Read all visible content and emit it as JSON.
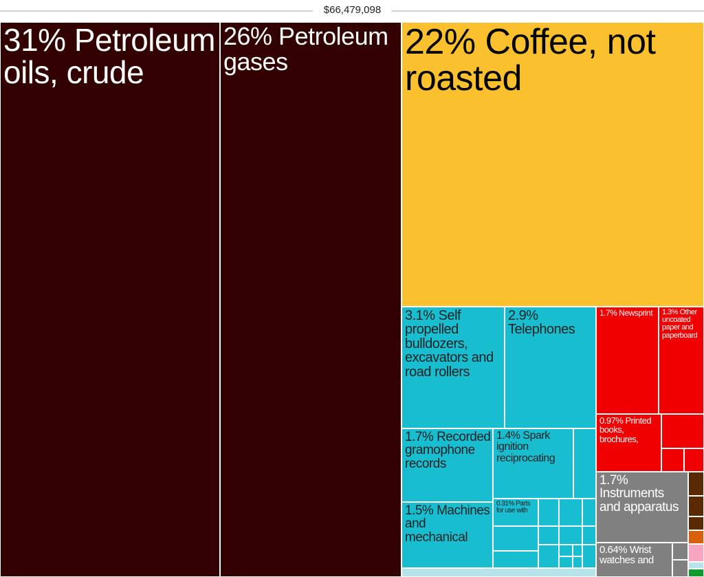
{
  "chart_data": {
    "type": "treemap",
    "total": "$66,479,098",
    "colors": {
      "dark": "#330000",
      "coffee": "#fbc02d",
      "machinery": "#19bdd0",
      "paper": "#f00000",
      "instruments": "#808080",
      "misc_brown": "#5a2a05",
      "misc_orange": "#d8600a",
      "misc_pink": "#f7a6c2",
      "misc_green": "#0d9b2e",
      "misc_light": "#b7e3ea"
    },
    "items": [
      {
        "share_pct": 31,
        "label": "31% Petroleum oils, crude",
        "color_key": "dark",
        "label_color": "#ffffff"
      },
      {
        "share_pct": 26,
        "label": "26% Petroleum gases",
        "color_key": "dark",
        "label_color": "#ffffff"
      },
      {
        "share_pct": 22,
        "label": "22% Coffee, not roasted",
        "color_key": "coffee",
        "label_color": "#000000"
      },
      {
        "share_pct": 3.1,
        "label": "3.1% Self propelled bulldozers, excavators and road rollers",
        "color_key": "machinery",
        "label_color": "#222222"
      },
      {
        "share_pct": 2.9,
        "label": "2.9% Telephones",
        "color_key": "machinery",
        "label_color": "#222222"
      },
      {
        "share_pct": 1.7,
        "label": "1.7% Recorded gramophone records",
        "color_key": "machinery",
        "label_color": "#222222"
      },
      {
        "share_pct": 1.4,
        "label": "1.4% Spark ignition reciprocating",
        "color_key": "machinery",
        "label_color": "#222222"
      },
      {
        "share_pct": 1.5,
        "label": "1.5% Machines and mechanical",
        "color_key": "machinery",
        "label_color": "#222222"
      },
      {
        "share_pct": 0.31,
        "label": "0.31% Parts for use with",
        "color_key": "machinery",
        "label_color": "#222222"
      },
      {
        "share_pct": 1.7,
        "label": "1.7% Newsprint",
        "color_key": "paper",
        "label_color": "#ffffff"
      },
      {
        "share_pct": 1.3,
        "label": "1.3% Other uncoated paper and paperboard",
        "color_key": "paper",
        "label_color": "#ffffff"
      },
      {
        "share_pct": 0.97,
        "label": "0.97% Printed books, brochures,",
        "color_key": "paper",
        "label_color": "#ffffff"
      },
      {
        "share_pct": 1.7,
        "label": "1.7% Instruments and apparatus",
        "color_key": "instruments",
        "label_color": "#ffffff"
      },
      {
        "share_pct": 0.64,
        "label": "0.64% Wrist watches and",
        "color_key": "instruments",
        "label_color": "#ffffff"
      }
    ]
  }
}
